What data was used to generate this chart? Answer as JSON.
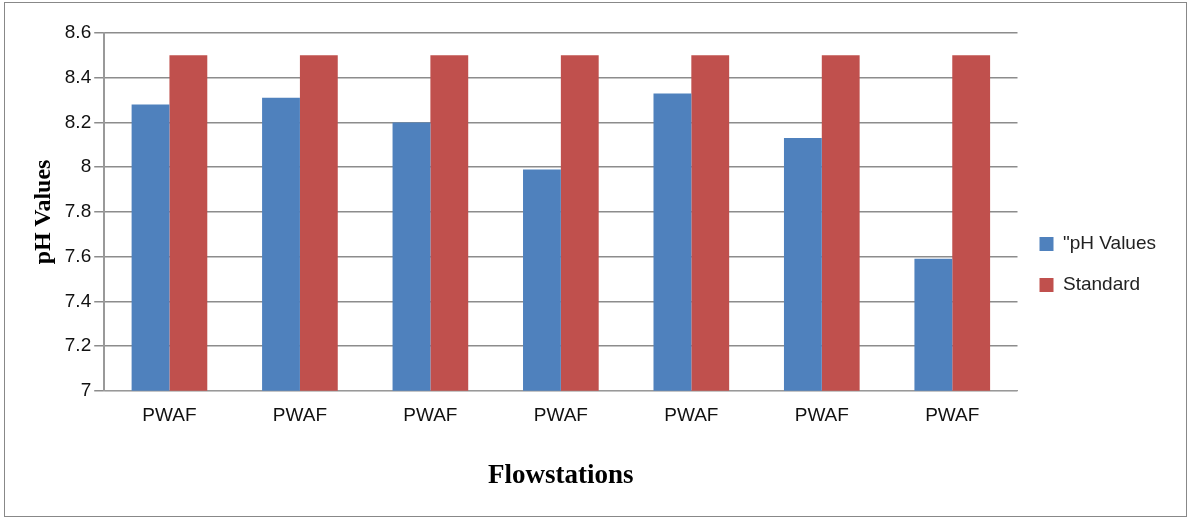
{
  "chart_data": {
    "type": "bar",
    "xlabel": "Flowstations",
    "ylabel": "pH Values",
    "categories": [
      "PWAF",
      "PWAF",
      "PWAF",
      "PWAF",
      "PWAF",
      "PWAF",
      "PWAF"
    ],
    "series": [
      {
        "name": "\"pH Values",
        "color": "#4f81bd",
        "values": [
          8.28,
          8.31,
          8.2,
          7.99,
          8.33,
          8.13,
          7.59
        ]
      },
      {
        "name": "Standard",
        "color": "#c0504d",
        "values": [
          8.5,
          8.5,
          8.5,
          8.5,
          8.5,
          8.5,
          8.5
        ]
      }
    ],
    "ylim": [
      7,
      8.6
    ],
    "yticks": [
      7,
      7.2,
      7.4,
      7.6,
      7.8,
      8,
      8.2,
      8.4,
      8.6
    ],
    "grid": "y",
    "legend": "right"
  }
}
